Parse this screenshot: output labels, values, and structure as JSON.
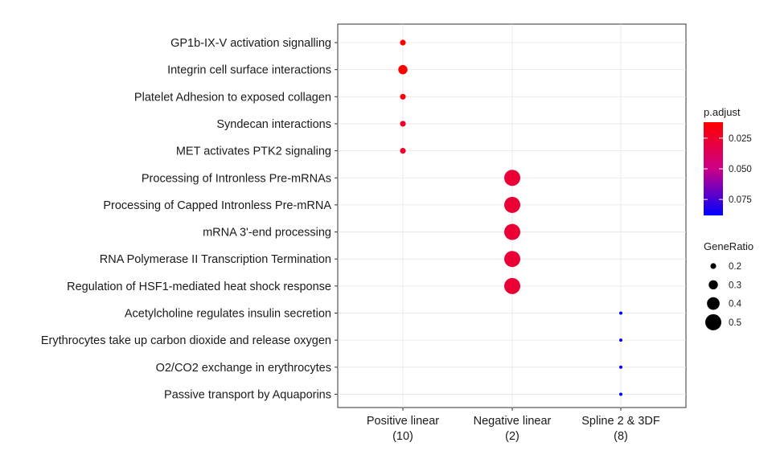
{
  "chart_data": {
    "type": "dotplot",
    "categories_y": [
      "GP1b-IX-V activation signalling",
      "Integrin cell surface interactions",
      "Platelet Adhesion to exposed collagen",
      "Syndecan interactions",
      "MET activates PTK2 signaling",
      "Processing of Intronless Pre-mRNAs",
      "Processing of Capped Intronless Pre-mRNA",
      "mRNA 3'-end processing",
      "RNA Polymerase II Transcription Termination",
      "Regulation of HSF1-mediated heat shock response",
      "Acetylcholine regulates insulin secretion",
      "Erythrocytes take up carbon dioxide and release oxygen",
      "O2/CO2 exchange in erythrocytes",
      "Passive transport by Aquaporins"
    ],
    "categories_x": [
      {
        "line1": "Positive linear",
        "line2": "(10)"
      },
      {
        "line1": "Negative linear",
        "line2": "(2)"
      },
      {
        "line1": "Spline 2 & 3DF",
        "line2": "(8)"
      }
    ],
    "points": [
      {
        "term": "GP1b-IX-V activation signalling",
        "cluster": 0,
        "gene_ratio": 0.2,
        "p_adjust": 0.012
      },
      {
        "term": "Integrin cell surface interactions",
        "cluster": 0,
        "gene_ratio": 0.3,
        "p_adjust": 0.012
      },
      {
        "term": "Platelet Adhesion to exposed collagen",
        "cluster": 0,
        "gene_ratio": 0.2,
        "p_adjust": 0.015
      },
      {
        "term": "Syndecan interactions",
        "cluster": 0,
        "gene_ratio": 0.2,
        "p_adjust": 0.024
      },
      {
        "term": "MET activates PTK2 signaling",
        "cluster": 0,
        "gene_ratio": 0.2,
        "p_adjust": 0.024
      },
      {
        "term": "Processing of Intronless Pre-mRNAs",
        "cluster": 1,
        "gene_ratio": 0.5,
        "p_adjust": 0.027
      },
      {
        "term": "Processing of Capped Intronless Pre-mRNA",
        "cluster": 1,
        "gene_ratio": 0.5,
        "p_adjust": 0.027
      },
      {
        "term": "mRNA 3'-end processing",
        "cluster": 1,
        "gene_ratio": 0.5,
        "p_adjust": 0.027
      },
      {
        "term": "RNA Polymerase II Transcription Termination",
        "cluster": 1,
        "gene_ratio": 0.5,
        "p_adjust": 0.027
      },
      {
        "term": "Regulation of HSF1-mediated heat shock response",
        "cluster": 1,
        "gene_ratio": 0.5,
        "p_adjust": 0.027
      },
      {
        "term": "Acetylcholine regulates insulin secretion",
        "cluster": 2,
        "gene_ratio": 0.125,
        "p_adjust": 0.088
      },
      {
        "term": "Erythrocytes take up carbon dioxide and release oxygen",
        "cluster": 2,
        "gene_ratio": 0.125,
        "p_adjust": 0.088
      },
      {
        "term": "O2/CO2 exchange in erythrocytes",
        "cluster": 2,
        "gene_ratio": 0.125,
        "p_adjust": 0.088
      },
      {
        "term": "Passive transport by Aquaporins",
        "cluster": 2,
        "gene_ratio": 0.125,
        "p_adjust": 0.088
      }
    ],
    "color_legend": {
      "title": "p.adjust",
      "ticks": [
        "0.025",
        "0.050",
        "0.075"
      ],
      "tick_values": [
        0.025,
        0.05,
        0.075
      ],
      "range": [
        0.012,
        0.088
      ],
      "low_color": "#ff0000",
      "high_color": "#0000ff"
    },
    "size_legend": {
      "title": "GeneRatio",
      "ticks": [
        "0.2",
        "0.3",
        "0.4",
        "0.5"
      ],
      "tick_values": [
        0.2,
        0.3,
        0.4,
        0.5
      ]
    },
    "grid": true
  }
}
